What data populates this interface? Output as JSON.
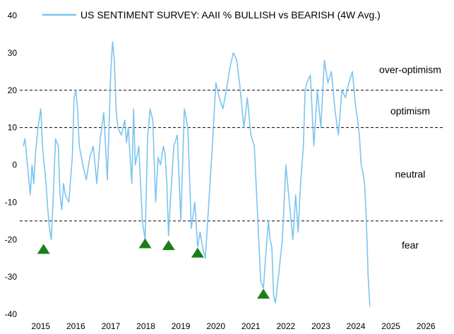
{
  "chart_data": {
    "type": "line",
    "title": "",
    "xlabel": "",
    "ylabel": "",
    "legend": {
      "placement": "top-left",
      "entries": [
        "US SENTIMENT SURVEY: AAII % BULLISH vs BEARISH (4W Avg.)"
      ]
    },
    "series_color": "#7cc5ee",
    "ylim": [
      -40,
      40
    ],
    "xlim": [
      2014.9,
      2027.0
    ],
    "grid": false,
    "y_ticks": [
      40,
      30,
      20,
      10,
      0,
      -10,
      -20,
      -30,
      -40
    ],
    "y_tick_labels": [
      "40",
      "30",
      "20",
      "10",
      "0",
      "-10",
      "-20",
      "-30",
      "-40"
    ],
    "x_ticks": [
      2015,
      2016,
      2017,
      2018,
      2019,
      2020,
      2021,
      2022,
      2023,
      2024,
      2025,
      2026
    ],
    "x_tick_labels": [
      "2015",
      "2016",
      "2017",
      "2018",
      "2019",
      "2020",
      "2021",
      "2022",
      "2023",
      "2024",
      "2025",
      "2026"
    ],
    "reference_lines": [
      20,
      10,
      -15
    ],
    "zone_labels": [
      {
        "text": "over-optimism",
        "y": 25.5
      },
      {
        "text": "optimism",
        "y": 14.5
      },
      {
        "text": "neutral",
        "y": -2.5
      },
      {
        "text": "fear",
        "y": -21.5
      }
    ],
    "markers": {
      "shape": "triangle-up",
      "color": "#1a7f1a",
      "points": [
        {
          "x": 2015.58,
          "y": -22.5
        },
        {
          "x": 2018.48,
          "y": -21.0
        },
        {
          "x": 2019.15,
          "y": -21.5
        },
        {
          "x": 2019.98,
          "y": -23.5
        },
        {
          "x": 2021.86,
          "y": -34.5
        }
      ]
    },
    "series": [
      {
        "name": "US SENTIMENT SURVEY: AAII % BULLISH vs BEARISH (4W Avg.)",
        "x": [
          2015.0,
          2015.05,
          2015.1,
          2015.15,
          2015.2,
          2015.25,
          2015.3,
          2015.35,
          2015.42,
          2015.5,
          2015.55,
          2015.6,
          2015.65,
          2015.7,
          2015.75,
          2015.8,
          2015.85,
          2015.92,
          2016.0,
          2016.05,
          2016.1,
          2016.15,
          2016.2,
          2016.3,
          2016.4,
          2016.45,
          2016.5,
          2016.55,
          2016.6,
          2016.7,
          2016.8,
          2016.9,
          2017.0,
          2017.1,
          2017.2,
          2017.3,
          2017.4,
          2017.5,
          2017.55,
          2017.6,
          2017.65,
          2017.7,
          2017.8,
          2017.9,
          2017.95,
          2018.0,
          2018.1,
          2018.15,
          2018.2,
          2018.3,
          2018.4,
          2018.48,
          2018.55,
          2018.62,
          2018.7,
          2018.78,
          2018.85,
          2018.92,
          2019.0,
          2019.05,
          2019.1,
          2019.15,
          2019.2,
          2019.3,
          2019.4,
          2019.5,
          2019.6,
          2019.7,
          2019.8,
          2019.9,
          2019.98,
          2020.05,
          2020.12,
          2020.2,
          2020.3,
          2020.4,
          2020.5,
          2020.6,
          2020.7,
          2020.8,
          2020.9,
          2021.0,
          2021.1,
          2021.2,
          2021.3,
          2021.4,
          2021.5,
          2021.6,
          2021.7,
          2021.78,
          2021.86,
          2021.92,
          2022.0,
          2022.05,
          2022.1,
          2022.15,
          2022.2,
          2022.3,
          2022.4,
          2022.5,
          2022.6,
          2022.7,
          2022.78,
          2022.85,
          2022.92,
          2023.0,
          2023.05,
          2023.1,
          2023.2,
          2023.3,
          2023.4,
          2023.5,
          2023.6,
          2023.7,
          2023.8,
          2023.9,
          2024.0,
          2024.1,
          2024.2,
          2024.3,
          2024.4,
          2024.5,
          2024.55,
          2024.6,
          2024.65,
          2024.7,
          2024.75,
          2024.8,
          2024.85,
          2024.9
        ],
        "values": [
          5,
          7,
          2,
          -3,
          -8,
          0,
          -5,
          3,
          10,
          15,
          5,
          0,
          -5,
          -12,
          -17,
          -20,
          -10,
          7,
          5,
          -8,
          -12,
          -5,
          -8,
          -10,
          2,
          18,
          20,
          15,
          5,
          0,
          -4,
          2,
          5,
          -5,
          7,
          14,
          -4,
          25,
          33,
          28,
          15,
          10,
          8,
          12,
          6,
          10,
          -5,
          15,
          0,
          5,
          -15,
          -20,
          7,
          15,
          12,
          -10,
          2,
          0,
          5,
          3,
          -5,
          -19,
          -10,
          5,
          8,
          -15,
          15,
          10,
          -17,
          -10,
          -22,
          -18,
          -22,
          -25,
          -10,
          5,
          22,
          18,
          15,
          20,
          26,
          30,
          28,
          20,
          10,
          18,
          8,
          5,
          -15,
          -31,
          -33,
          -25,
          -15,
          -20,
          -22,
          -35,
          -37,
          -29,
          -20,
          0,
          -10,
          -20,
          -8,
          -18,
          -5,
          5,
          20,
          22,
          24,
          5,
          20,
          10,
          28,
          22,
          25,
          15,
          8,
          20,
          18,
          22,
          25,
          15,
          12,
          8,
          0,
          -2,
          -5,
          -15,
          -30,
          -38
        ]
      }
    ]
  }
}
